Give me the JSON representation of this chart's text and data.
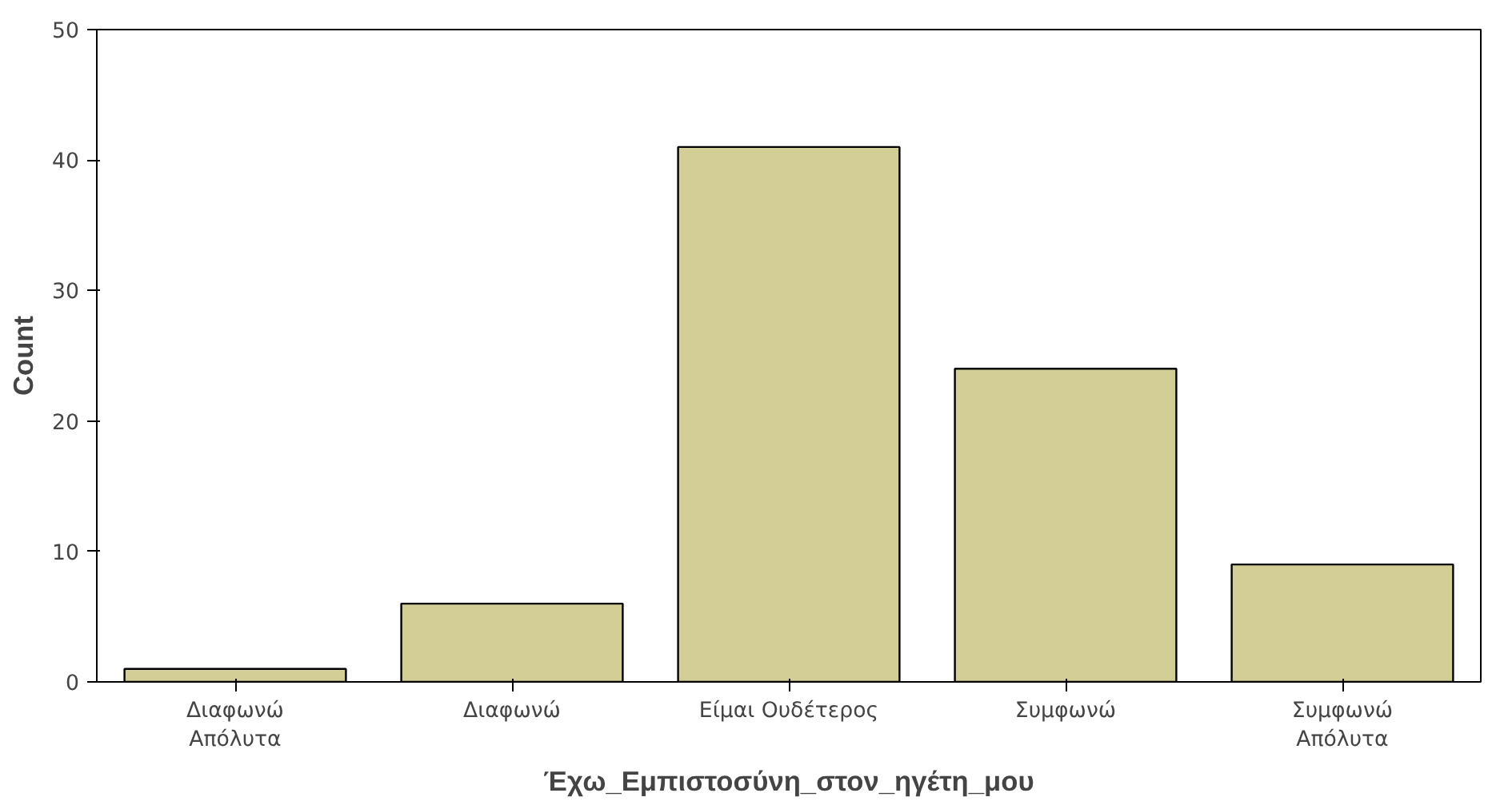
{
  "chart_data": {
    "type": "bar",
    "xlabel": "Έχω_Εμπιστοσύνη_στον_ηγέτη_μου",
    "ylabel": "Count",
    "categories": [
      "Διαφωνώ Απόλυτα",
      "Διαφωνώ",
      "Είμαι Ουδέτερος",
      "Συμφωνώ",
      "Συμφωνώ Απόλυτα"
    ],
    "values": [
      1,
      6,
      41,
      24,
      9
    ],
    "color": "#d3ce95",
    "ylim": [
      0,
      50
    ],
    "yticks": [
      0,
      10,
      20,
      30,
      40,
      50
    ],
    "grid": false
  }
}
